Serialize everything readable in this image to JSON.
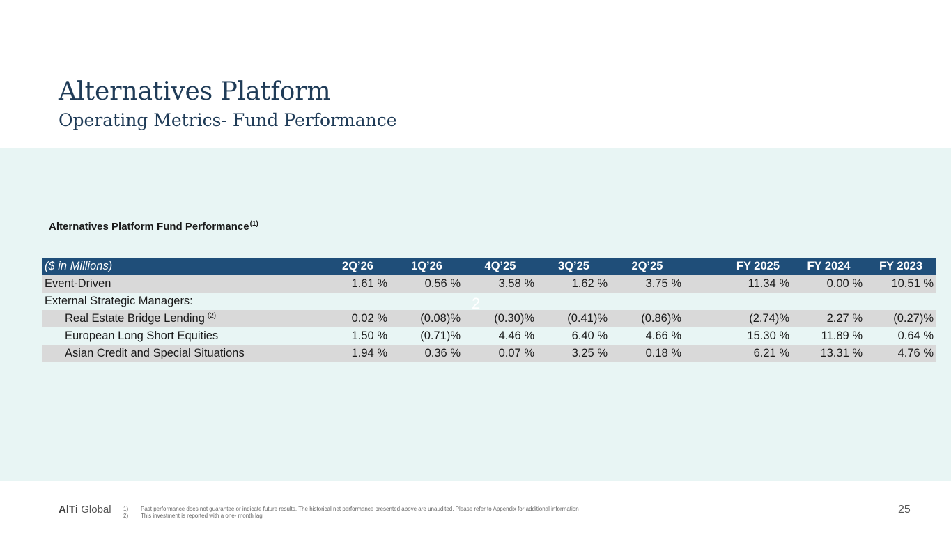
{
  "header": {
    "title": "Alternatives Platform",
    "subtitle": "Operating Metrics- Fund Performance"
  },
  "section": {
    "heading": "Alternatives Platform Fund Performance",
    "heading_note": "(1)"
  },
  "table": {
    "columns": [
      "($ in Millions)",
      "2Q’26",
      "1Q’26",
      "4Q’25",
      "3Q’25",
      "2Q’25",
      "FY 2025",
      "FY 2024",
      "FY 2023"
    ],
    "rows": [
      {
        "label": "Event-Driven",
        "note": "",
        "values": [
          "1.61 %",
          "0.56 %",
          "3.58 %",
          "1.62 %",
          "3.75 %",
          "11.34 %",
          "0.00 %",
          "10.51 %"
        ]
      },
      {
        "label": "External Strategic Managers:",
        "note": "",
        "values": [
          "",
          "",
          "",
          "",
          "",
          "",
          "",
          ""
        ]
      },
      {
        "label": "Real Estate Bridge Lending",
        "note": "(2)",
        "values": [
          "0.02 %",
          "(0.08)%",
          "(0.30)%",
          "(0.41)%",
          "(0.86)%",
          "(2.74)%",
          "2.27 %",
          "(0.27)%"
        ]
      },
      {
        "label": "European Long Short Equities",
        "note": "",
        "values": [
          "1.50 %",
          "(0.71)%",
          "4.46 %",
          "6.40 %",
          "4.66 %",
          "15.30 %",
          "11.89 %",
          "0.64 %"
        ]
      },
      {
        "label": "Asian Credit and Special Situations",
        "note": "",
        "values": [
          "1.94 %",
          "0.36 %",
          "0.07 %",
          "3.25 %",
          "0.18 %",
          "6.21 %",
          "13.31 %",
          "4.76 %"
        ]
      }
    ]
  },
  "overlay_mark": "2",
  "footer": {
    "logo_strong": "AlTi",
    "logo_rest": " Global",
    "footnotes": [
      {
        "num": "1)",
        "text": "Past performance does not guarantee or indicate future results. The historical net performance presented above are unaudited. Please refer to Appendix for additional information"
      },
      {
        "num": "2)",
        "text": "This investment is reported with a one- month lag"
      }
    ],
    "page_number": "25"
  },
  "colors": {
    "title": "#1f3b57",
    "panel_background": "#e8f5f4",
    "table_header": "#1f4e79",
    "row_shade": "#d9d9d9"
  }
}
